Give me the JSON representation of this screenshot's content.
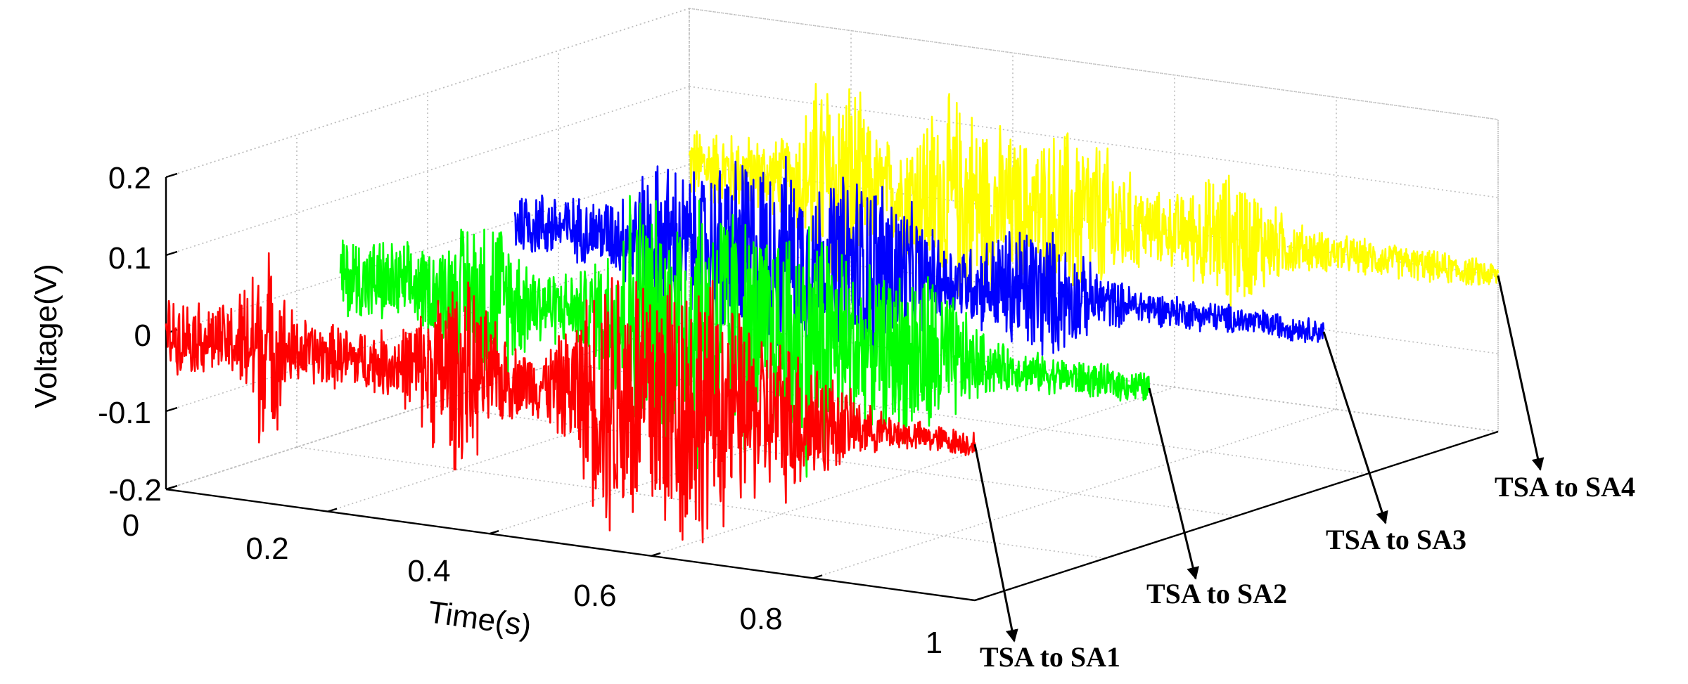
{
  "chart_data": {
    "type": "line",
    "subtype": "3d-waterfall",
    "title": "",
    "xlabel": "Time(s)",
    "ylabel": "",
    "zlabel": "Voltage(V)",
    "xlim": [
      0,
      1
    ],
    "zlim": [
      -0.2,
      0.2
    ],
    "x_ticks": [
      "0",
      "0.2",
      "0.4",
      "0.6",
      "0.8",
      "1"
    ],
    "z_ticks": [
      "0.2",
      "0.1",
      "0",
      "-0.1",
      "-0.2"
    ],
    "grid": true,
    "series": [
      {
        "name": "TSA to SA1",
        "color": "#ff0000",
        "depth_index": 0,
        "peak_amplitude": 0.21
      },
      {
        "name": "TSA to SA2",
        "color": "#00ff00",
        "depth_index": 1,
        "peak_amplitude": 0.21
      },
      {
        "name": "TSA to SA3",
        "color": "#0000ff",
        "depth_index": 2,
        "peak_amplitude": 0.14
      },
      {
        "name": "TSA to SA4",
        "color": "#ffff00",
        "depth_index": 3,
        "peak_amplitude": 0.16
      }
    ]
  }
}
